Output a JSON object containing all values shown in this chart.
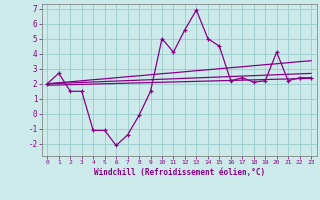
{
  "x": [
    0,
    1,
    2,
    3,
    4,
    5,
    6,
    7,
    8,
    9,
    10,
    11,
    12,
    13,
    14,
    15,
    16,
    17,
    18,
    19,
    20,
    21,
    22,
    23
  ],
  "y_main": [
    2.0,
    2.7,
    1.5,
    1.5,
    -1.1,
    -1.1,
    -2.1,
    -1.4,
    -0.1,
    1.5,
    5.0,
    4.1,
    5.6,
    6.9,
    5.0,
    4.5,
    2.2,
    2.4,
    2.1,
    2.2,
    4.1,
    2.2,
    2.4,
    2.4
  ],
  "y_line1": [
    2.0,
    2.07,
    2.13,
    2.2,
    2.27,
    2.33,
    2.4,
    2.47,
    2.53,
    2.6,
    2.67,
    2.73,
    2.8,
    2.87,
    2.93,
    3.0,
    3.07,
    3.13,
    3.2,
    3.27,
    3.33,
    3.4,
    3.47,
    3.53
  ],
  "y_line2": [
    2.0,
    2.03,
    2.06,
    2.09,
    2.12,
    2.15,
    2.18,
    2.21,
    2.24,
    2.27,
    2.3,
    2.33,
    2.36,
    2.39,
    2.42,
    2.45,
    2.48,
    2.51,
    2.54,
    2.57,
    2.6,
    2.63,
    2.66,
    2.69
  ],
  "y_line3": [
    1.9,
    1.92,
    1.94,
    1.96,
    1.98,
    2.0,
    2.02,
    2.04,
    2.06,
    2.08,
    2.1,
    2.12,
    2.14,
    2.16,
    2.18,
    2.2,
    2.22,
    2.24,
    2.26,
    2.28,
    2.3,
    2.32,
    2.34,
    2.36
  ],
  "bg_color": "#cceaea",
  "line_color": "#880088",
  "grid_color": "#99cccc",
  "xlabel": "Windchill (Refroidissement éolien,°C)",
  "ylim": [
    -2.8,
    7.3
  ],
  "xlim": [
    -0.5,
    23.5
  ],
  "yticks": [
    -2,
    -1,
    0,
    1,
    2,
    3,
    4,
    5,
    6,
    7
  ],
  "xticks": [
    0,
    1,
    2,
    3,
    4,
    5,
    6,
    7,
    8,
    9,
    10,
    11,
    12,
    13,
    14,
    15,
    16,
    17,
    18,
    19,
    20,
    21,
    22,
    23
  ]
}
